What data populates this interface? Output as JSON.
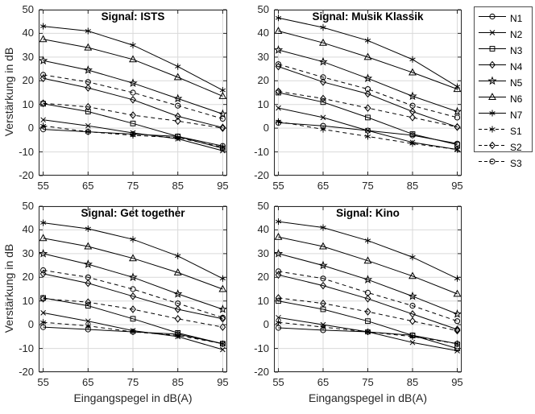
{
  "figure": {
    "background_color": "#ffffff",
    "axis_color": "#262626",
    "grid_color": "#d9d9d9",
    "line_color": "#000000",
    "xlim": [
      54,
      96
    ],
    "ylim": [
      -20,
      50
    ],
    "xticks": [
      55,
      65,
      75,
      85,
      95
    ],
    "yticks": [
      50,
      40,
      30,
      20,
      10,
      0,
      -10,
      -20
    ],
    "grid": true
  },
  "legend": {
    "position": "outside-top-right",
    "items": [
      {
        "label": "N1",
        "marker": "circle",
        "dash": false
      },
      {
        "label": "N2",
        "marker": "x",
        "dash": false
      },
      {
        "label": "N3",
        "marker": "square",
        "dash": false
      },
      {
        "label": "N4",
        "marker": "diamond",
        "dash": false
      },
      {
        "label": "N5",
        "marker": "star",
        "dash": false
      },
      {
        "label": "N6",
        "marker": "triangle",
        "dash": false
      },
      {
        "label": "N7",
        "marker": "asterisk",
        "dash": false
      },
      {
        "label": "S1",
        "marker": "asterisk",
        "dash": true
      },
      {
        "label": "S2",
        "marker": "diamond",
        "dash": true
      },
      {
        "label": "S3",
        "marker": "circle",
        "dash": true
      }
    ]
  },
  "chart_data": [
    {
      "type": "line",
      "title": "Signal: ISTS",
      "xlabel": "",
      "ylabel": "Verstärkung in dB",
      "x": [
        55,
        65,
        75,
        85,
        95
      ],
      "xlim": [
        54,
        96
      ],
      "ylim": [
        -20,
        50
      ],
      "series": [
        {
          "name": "N1",
          "marker": "circle",
          "dash": false,
          "values": [
            -0.5,
            -1.5,
            -2.5,
            -3.5,
            -7.5
          ]
        },
        {
          "name": "N2",
          "marker": "x",
          "dash": false,
          "values": [
            3.5,
            1,
            -2,
            -4.5,
            -9.5
          ]
        },
        {
          "name": "N3",
          "marker": "square",
          "dash": false,
          "values": [
            10.3,
            7,
            2,
            -3.5,
            -8.5
          ]
        },
        {
          "name": "N4",
          "marker": "diamond",
          "dash": false,
          "values": [
            21,
            17,
            12,
            5,
            0.3
          ]
        },
        {
          "name": "N5",
          "marker": "star",
          "dash": false,
          "values": [
            28.5,
            24.5,
            19,
            12.5,
            6
          ]
        },
        {
          "name": "N6",
          "marker": "triangle",
          "dash": false,
          "values": [
            37.5,
            34,
            29,
            21.5,
            13.5
          ]
        },
        {
          "name": "N7",
          "marker": "asterisk",
          "dash": false,
          "values": [
            43,
            41,
            35,
            26,
            16
          ]
        },
        {
          "name": "S1",
          "marker": "asterisk",
          "dash": true,
          "values": [
            1,
            -1.5,
            -3,
            -4,
            -8
          ]
        },
        {
          "name": "S2",
          "marker": "diamond",
          "dash": true,
          "values": [
            10.5,
            9,
            5.5,
            3,
            0
          ]
        },
        {
          "name": "S3",
          "marker": "circle",
          "dash": true,
          "values": [
            22.5,
            19.5,
            15,
            9.5,
            4
          ]
        }
      ]
    },
    {
      "type": "line",
      "title": "Signal: Musik Klassik",
      "xlabel": "",
      "ylabel": "",
      "x": [
        55,
        65,
        75,
        85,
        95
      ],
      "xlim": [
        54,
        96
      ],
      "ylim": [
        -20,
        50
      ],
      "series": [
        {
          "name": "N1",
          "marker": "circle",
          "dash": false,
          "values": [
            2.3,
            1,
            -1,
            -3,
            -6.5
          ]
        },
        {
          "name": "N2",
          "marker": "x",
          "dash": false,
          "values": [
            8.5,
            4.5,
            -1,
            -6,
            -9
          ]
        },
        {
          "name": "N3",
          "marker": "square",
          "dash": false,
          "values": [
            15,
            11,
            4.5,
            -2.5,
            -7
          ]
        },
        {
          "name": "N4",
          "marker": "diamond",
          "dash": false,
          "values": [
            26,
            19.5,
            14.5,
            7,
            0.5
          ]
        },
        {
          "name": "N5",
          "marker": "star",
          "dash": false,
          "values": [
            33,
            28,
            21,
            13.5,
            7
          ]
        },
        {
          "name": "N6",
          "marker": "triangle",
          "dash": false,
          "values": [
            41,
            36,
            30,
            23.5,
            16.5
          ]
        },
        {
          "name": "N7",
          "marker": "asterisk",
          "dash": false,
          "values": [
            46.5,
            42.5,
            37,
            29,
            17.5
          ]
        },
        {
          "name": "S1",
          "marker": "asterisk",
          "dash": true,
          "values": [
            2.8,
            -0.5,
            -3.5,
            -6.5,
            -9
          ]
        },
        {
          "name": "S2",
          "marker": "diamond",
          "dash": true,
          "values": [
            15.5,
            12.5,
            8.5,
            4.5,
            0.5
          ]
        },
        {
          "name": "S3",
          "marker": "circle",
          "dash": true,
          "values": [
            27,
            21.5,
            16.5,
            9.5,
            4.5
          ]
        }
      ]
    },
    {
      "type": "line",
      "title": "Signal: Get together",
      "xlabel": "Eingangspegel in dB(A)",
      "ylabel": "Verstärkung in dB",
      "x": [
        55,
        65,
        75,
        85,
        95
      ],
      "xlim": [
        54,
        96
      ],
      "ylim": [
        -20,
        50
      ],
      "series": [
        {
          "name": "N1",
          "marker": "circle",
          "dash": false,
          "values": [
            -1,
            -2,
            -3,
            -4,
            -8
          ]
        },
        {
          "name": "N2",
          "marker": "x",
          "dash": false,
          "values": [
            5,
            1.5,
            -2.5,
            -5,
            -10.5
          ]
        },
        {
          "name": "N3",
          "marker": "square",
          "dash": false,
          "values": [
            11.3,
            8,
            2.5,
            -3.5,
            -8
          ]
        },
        {
          "name": "N4",
          "marker": "diamond",
          "dash": false,
          "values": [
            21.5,
            17.5,
            12,
            6.5,
            2.5
          ]
        },
        {
          "name": "N5",
          "marker": "star",
          "dash": false,
          "values": [
            30,
            25.5,
            20,
            13,
            6.5
          ]
        },
        {
          "name": "N6",
          "marker": "triangle",
          "dash": false,
          "values": [
            36.5,
            33,
            28,
            22,
            15
          ]
        },
        {
          "name": "N7",
          "marker": "asterisk",
          "dash": false,
          "values": [
            43,
            40.5,
            36,
            29,
            19.5
          ]
        },
        {
          "name": "S1",
          "marker": "asterisk",
          "dash": true,
          "values": [
            1,
            -0.5,
            -3,
            -4.5,
            -8
          ]
        },
        {
          "name": "S2",
          "marker": "diamond",
          "dash": true,
          "values": [
            11,
            9.5,
            6.5,
            2.5,
            -1
          ]
        },
        {
          "name": "S3",
          "marker": "circle",
          "dash": true,
          "values": [
            23,
            20,
            15,
            9,
            3
          ]
        }
      ]
    },
    {
      "type": "line",
      "title": "Signal: Kino",
      "xlabel": "Eingangspegel in dB(A)",
      "ylabel": "",
      "x": [
        55,
        65,
        75,
        85,
        95
      ],
      "xlim": [
        54,
        96
      ],
      "ylim": [
        -20,
        50
      ],
      "series": [
        {
          "name": "N1",
          "marker": "circle",
          "dash": false,
          "values": [
            -1.3,
            -2.3,
            -3,
            -4.5,
            -8
          ]
        },
        {
          "name": "N2",
          "marker": "x",
          "dash": false,
          "values": [
            3,
            0,
            -3,
            -7.5,
            -11
          ]
        },
        {
          "name": "N3",
          "marker": "square",
          "dash": false,
          "values": [
            10,
            6.5,
            1.5,
            -4.5,
            -10
          ]
        },
        {
          "name": "N4",
          "marker": "diamond",
          "dash": false,
          "values": [
            21,
            16.5,
            11,
            4.5,
            -2
          ]
        },
        {
          "name": "N5",
          "marker": "star",
          "dash": false,
          "values": [
            30,
            25,
            19,
            12,
            4.5
          ]
        },
        {
          "name": "N6",
          "marker": "triangle",
          "dash": false,
          "values": [
            37,
            33,
            27,
            20.5,
            13
          ]
        },
        {
          "name": "N7",
          "marker": "asterisk",
          "dash": false,
          "values": [
            43.5,
            41,
            35.5,
            28.5,
            19.5
          ]
        },
        {
          "name": "S1",
          "marker": "asterisk",
          "dash": true,
          "values": [
            1,
            -1,
            -3,
            -5,
            -8
          ]
        },
        {
          "name": "S2",
          "marker": "diamond",
          "dash": true,
          "values": [
            11.3,
            9,
            5.5,
            1.5,
            -2.5
          ]
        },
        {
          "name": "S3",
          "marker": "circle",
          "dash": true,
          "values": [
            22.5,
            19.5,
            13.5,
            8,
            1.5
          ]
        }
      ]
    }
  ]
}
